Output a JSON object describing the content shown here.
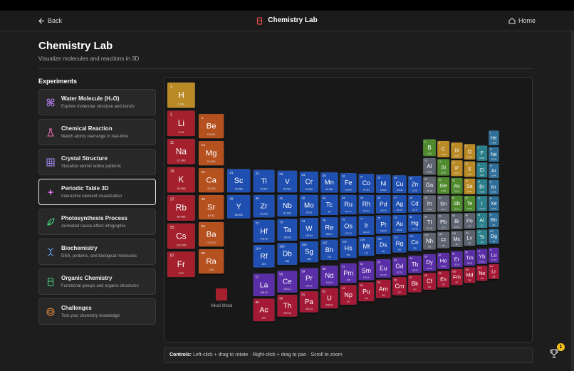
{
  "header": {
    "back": "Back",
    "title": "Chemistry Lab",
    "home": "Home"
  },
  "page": {
    "title": "Chemistry Lab",
    "subtitle": "Visualize molecules and reactions in 3D"
  },
  "sidebar": {
    "heading": "Experiments",
    "items": [
      {
        "title": "Water Molecule (H₂O)",
        "description": "Explore molecular structure and bonds"
      },
      {
        "title": "Chemical Reaction",
        "description": "Watch atoms rearrange in real-time"
      },
      {
        "title": "Crystal Structure",
        "description": "Visualize atomic lattice patterns"
      },
      {
        "title": "Periodic Table 3D",
        "description": "Interactive element visualization"
      },
      {
        "title": "Photosynthesis Process",
        "description": "Animated cause-effect infographic"
      },
      {
        "title": "Biochemistry",
        "description": "DNA, proteins, and biological molecules"
      },
      {
        "title": "Organic Chemistry",
        "description": "Functional groups and organic structures"
      },
      {
        "title": "Challenges",
        "description": "Test your chemistry knowledge"
      }
    ]
  },
  "periodic_table": {
    "groups": [
      {
        "color": "#a3202c",
        "elements": [
          {
            "n": 3,
            "s": "Li",
            "m": "6.94"
          },
          {
            "n": 11,
            "s": "Na",
            "m": "22.990"
          },
          {
            "n": 19,
            "s": "K",
            "m": "39.098"
          },
          {
            "n": 37,
            "s": "Rb",
            "m": "85.468"
          },
          {
            "n": 55,
            "s": "Cs",
            "m": "132.905"
          },
          {
            "n": 87,
            "s": "Fr",
            "m": "223"
          }
        ]
      },
      {
        "color": "#b5501f",
        "elements": [
          {
            "n": 4,
            "s": "Be",
            "m": "9.0122"
          },
          {
            "n": 12,
            "s": "Mg",
            "m": "24.305"
          },
          {
            "n": 20,
            "s": "Ca",
            "m": "40.078"
          },
          {
            "n": 38,
            "s": "Sr",
            "m": "87.62"
          },
          {
            "n": 56,
            "s": "Ba",
            "m": "137.327"
          },
          {
            "n": 88,
            "s": "Ra",
            "m": "226"
          }
        ]
      },
      {
        "color": "#1f4fb0",
        "elements": [
          {
            "n": 21,
            "s": "Sc",
            "m": "44.956"
          },
          {
            "n": 22,
            "s": "Ti",
            "m": "47.867"
          },
          {
            "n": 23,
            "s": "V",
            "m": "50.942"
          },
          {
            "n": 24,
            "s": "Cr",
            "m": "51.996"
          },
          {
            "n": 25,
            "s": "Mn",
            "m": "54.938"
          },
          {
            "n": 26,
            "s": "Fe",
            "m": "55.845"
          },
          {
            "n": 27,
            "s": "Co",
            "m": "58.933"
          },
          {
            "n": 28,
            "s": "Ni",
            "m": "58.693"
          },
          {
            "n": 29,
            "s": "Cu",
            "m": "63.546"
          },
          {
            "n": 30,
            "s": "Zn",
            "m": "65.38"
          },
          {
            "n": 39,
            "s": "Y",
            "m": "88.906"
          },
          {
            "n": 40,
            "s": "Zr",
            "m": "91.224"
          },
          {
            "n": 41,
            "s": "Nb",
            "m": "92.906"
          },
          {
            "n": 42,
            "s": "Mo",
            "m": "95.95"
          },
          {
            "n": 43,
            "s": "Tc",
            "m": "98"
          },
          {
            "n": 44,
            "s": "Ru",
            "m": "101.07"
          },
          {
            "n": 45,
            "s": "Rh",
            "m": "102.91"
          },
          {
            "n": 46,
            "s": "Pd",
            "m": "106.42"
          },
          {
            "n": 47,
            "s": "Ag",
            "m": "107.87"
          },
          {
            "n": 48,
            "s": "Cd",
            "m": "112.41"
          },
          {
            "n": 72,
            "s": "Hf",
            "m": "178.49"
          },
          {
            "n": 73,
            "s": "Ta",
            "m": "180.95"
          },
          {
            "n": 74,
            "s": "W",
            "m": "183.84"
          },
          {
            "n": 75,
            "s": "Re",
            "m": "186.21"
          },
          {
            "n": 76,
            "s": "Os",
            "m": "190.23"
          },
          {
            "n": 77,
            "s": "Ir",
            "m": "192.22"
          },
          {
            "n": 78,
            "s": "Pt",
            "m": "195.08"
          },
          {
            "n": 79,
            "s": "Au",
            "m": "196.97"
          },
          {
            "n": 80,
            "s": "Hg",
            "m": "200.59"
          },
          {
            "n": 104,
            "s": "Rf",
            "m": "267"
          },
          {
            "n": 105,
            "s": "Db",
            "m": "268"
          },
          {
            "n": 106,
            "s": "Sg",
            "m": "269"
          },
          {
            "n": 107,
            "s": "Bh",
            "m": "270"
          },
          {
            "n": 108,
            "s": "Hs",
            "m": "269"
          },
          {
            "n": 109,
            "s": "Mt",
            "m": "278"
          },
          {
            "n": 110,
            "s": "Ds",
            "m": "281"
          },
          {
            "n": 111,
            "s": "Rg",
            "m": "282"
          },
          {
            "n": 112,
            "s": "Cn",
            "m": "285"
          }
        ]
      },
      {
        "color": "#5d6470",
        "elements": [
          {
            "n": 13,
            "s": "Al",
            "m": "26.982"
          },
          {
            "n": 31,
            "s": "Ga",
            "m": "69.723"
          },
          {
            "n": 49,
            "s": "In",
            "m": "114.82"
          },
          {
            "n": 50,
            "s": "Sn",
            "m": "118.71"
          },
          {
            "n": 81,
            "s": "Tl",
            "m": "204.38"
          },
          {
            "n": 82,
            "s": "Pb",
            "m": "207.2"
          },
          {
            "n": 83,
            "s": "Bi",
            "m": "208.98"
          },
          {
            "n": 84,
            "s": "Po",
            "m": "209"
          },
          {
            "n": 113,
            "s": "Nh",
            "m": "286"
          },
          {
            "n": 114,
            "s": "Fl",
            "m": "289"
          },
          {
            "n": 115,
            "s": "Mc",
            "m": "290"
          },
          {
            "n": 116,
            "s": "Lv",
            "m": "293"
          }
        ]
      },
      {
        "color": "#4f8a2f",
        "elements": [
          {
            "n": 5,
            "s": "B",
            "m": "10.81"
          },
          {
            "n": 14,
            "s": "Si",
            "m": "28.085"
          },
          {
            "n": 32,
            "s": "Ge",
            "m": "72.630"
          },
          {
            "n": 33,
            "s": "As",
            "m": "74.922"
          },
          {
            "n": 51,
            "s": "Sb",
            "m": "121.76"
          },
          {
            "n": 52,
            "s": "Te",
            "m": "127.60"
          }
        ]
      },
      {
        "color": "#b98a26",
        "elements": [
          {
            "n": 1,
            "s": "H",
            "m": "1.008"
          },
          {
            "n": 6,
            "s": "C",
            "m": "12.011"
          },
          {
            "n": 7,
            "s": "N",
            "m": "14.007"
          },
          {
            "n": 8,
            "s": "O",
            "m": "15.999"
          },
          {
            "n": 15,
            "s": "P",
            "m": "30.974"
          },
          {
            "n": 16,
            "s": "S",
            "m": "32.06"
          },
          {
            "n": 34,
            "s": "Se",
            "m": "78.971"
          }
        ]
      },
      {
        "color": "#2a7f8a",
        "elements": [
          {
            "n": 9,
            "s": "F",
            "m": "18.998"
          },
          {
            "n": 17,
            "s": "Cl",
            "m": "35.45"
          },
          {
            "n": 35,
            "s": "Br",
            "m": "79.904"
          },
          {
            "n": 53,
            "s": "I",
            "m": "126.90"
          },
          {
            "n": 85,
            "s": "At",
            "m": "210"
          },
          {
            "n": 117,
            "s": "Ts",
            "m": "294"
          }
        ]
      },
      {
        "color": "#2e6e98",
        "elements": [
          {
            "n": 2,
            "s": "He",
            "m": "4.0026"
          },
          {
            "n": 10,
            "s": "Ne",
            "m": "20.180"
          },
          {
            "n": 18,
            "s": "Ar",
            "m": "39.948"
          },
          {
            "n": 36,
            "s": "Kr",
            "m": "83.798"
          },
          {
            "n": 54,
            "s": "Xe",
            "m": "131.29"
          },
          {
            "n": 86,
            "s": "Rn",
            "m": "222"
          },
          {
            "n": 118,
            "s": "Og",
            "m": "294"
          }
        ]
      },
      {
        "color": "#5a2ea6",
        "elements": [
          {
            "n": 57,
            "s": "La",
            "m": "138.91"
          },
          {
            "n": 58,
            "s": "Ce",
            "m": "140.12"
          },
          {
            "n": 59,
            "s": "Pr",
            "m": "140.91"
          },
          {
            "n": 60,
            "s": "Nd",
            "m": "144.24"
          },
          {
            "n": 61,
            "s": "Pm",
            "m": "145"
          },
          {
            "n": 62,
            "s": "Sm",
            "m": "150.36"
          },
          {
            "n": 63,
            "s": "Eu",
            "m": "151.96"
          },
          {
            "n": 64,
            "s": "Gd",
            "m": "157.25"
          },
          {
            "n": 65,
            "s": "Tb",
            "m": "158.93"
          },
          {
            "n": 66,
            "s": "Dy",
            "m": "162.50"
          },
          {
            "n": 67,
            "s": "Ho",
            "m": "164.93"
          },
          {
            "n": 68,
            "s": "Er",
            "m": "167.26"
          },
          {
            "n": 69,
            "s": "Tm",
            "m": "168.93"
          },
          {
            "n": 70,
            "s": "Yb",
            "m": "173.05"
          },
          {
            "n": 71,
            "s": "Lu",
            "m": "174.97"
          }
        ]
      },
      {
        "color": "#a41a36",
        "elements": [
          {
            "n": 89,
            "s": "Ac",
            "m": "227"
          },
          {
            "n": 90,
            "s": "Th",
            "m": "232.04"
          },
          {
            "n": 91,
            "s": "Pa",
            "m": "231.04"
          },
          {
            "n": 92,
            "s": "U",
            "m": "238.03"
          },
          {
            "n": 93,
            "s": "Np",
            "m": "237"
          },
          {
            "n": 94,
            "s": "Pu",
            "m": "244"
          },
          {
            "n": 95,
            "s": "Am",
            "m": "243"
          },
          {
            "n": 96,
            "s": "Cm",
            "m": "247"
          },
          {
            "n": 97,
            "s": "Bk",
            "m": "247"
          },
          {
            "n": 98,
            "s": "Cf",
            "m": "251"
          },
          {
            "n": 99,
            "s": "Es",
            "m": "252"
          },
          {
            "n": 100,
            "s": "Fm",
            "m": "257"
          },
          {
            "n": 101,
            "s": "Md",
            "m": "258"
          },
          {
            "n": 102,
            "s": "No",
            "m": "259"
          },
          {
            "n": 103,
            "s": "Lr",
            "m": "266"
          }
        ]
      }
    ],
    "legend": [
      {
        "label": "Alkali Metal",
        "color": "#a3202c"
      }
    ]
  },
  "controls": {
    "label": "Controls:",
    "text": "Left-click + drag to rotate · Right-click + drag to pan · Scroll to zoom"
  },
  "achievements": {
    "count": 1
  }
}
